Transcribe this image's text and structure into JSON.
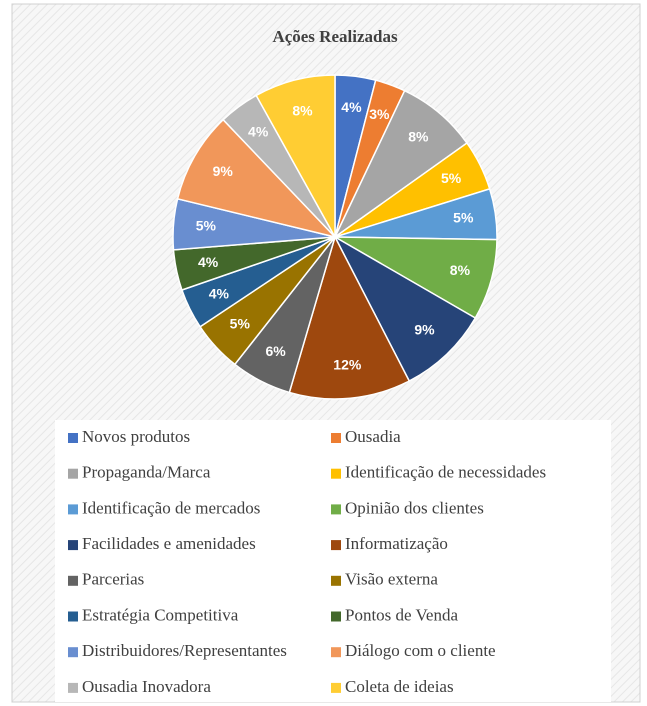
{
  "chart_data": {
    "type": "pie",
    "title": "Ações Realizadas",
    "categories": [
      "Novos produtos",
      "Ousadia",
      "Propaganda/Marca",
      "Identificação de necessidades",
      "Identificação de mercados",
      "Opinião dos clientes",
      "Facilidades e amenidades",
      "Informatização",
      "Parcerias",
      "Visão externa",
      "Estratégia Competitiva",
      "Pontos de Venda",
      "Distribuidores/Representantes",
      "Diálogo com o cliente",
      "Ousadia Inovadora",
      "Coleta de ideias"
    ],
    "values": [
      4,
      3,
      8,
      5,
      5,
      8,
      9,
      12,
      6,
      5,
      4,
      4,
      5,
      9,
      4,
      8
    ],
    "value_labels": [
      "4%",
      "3%",
      "8%",
      "5%",
      "5%",
      "8%",
      "9%",
      "12%",
      "6%",
      "5%",
      "4%",
      "4%",
      "5%",
      "9%",
      "4%",
      "8%"
    ],
    "colors": [
      "#4472c4",
      "#ed7d31",
      "#a5a5a5",
      "#ffc000",
      "#5b9bd5",
      "#70ad47",
      "#264478",
      "#9e480e",
      "#636363",
      "#997300",
      "#255e91",
      "#43682b",
      "#698ed0",
      "#f1975a",
      "#b7b7b7",
      "#ffcd33"
    ]
  }
}
